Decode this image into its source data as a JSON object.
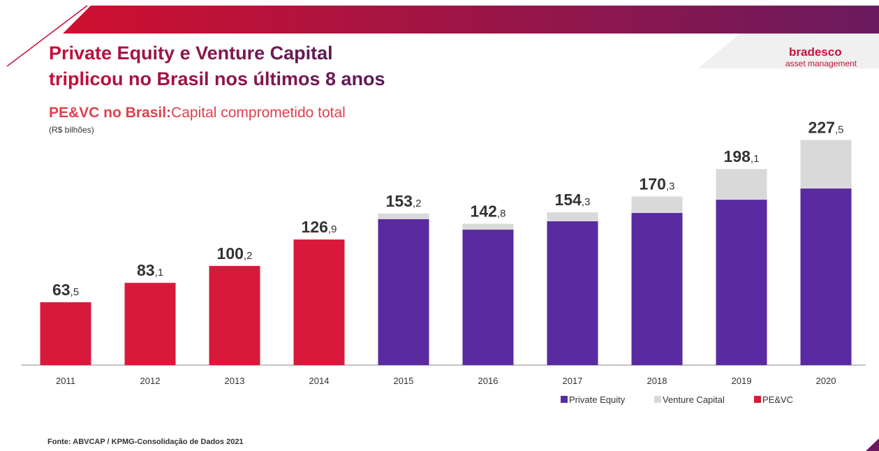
{
  "header": {
    "title_line1": "Private Equity e Venture Capital",
    "title_line2": "triplicou no Brasil nos últimos 8 anos",
    "logo_name": "bradesco",
    "logo_sub": "asset management"
  },
  "chart_data": {
    "type": "stacked_bar",
    "title_bold": "PE&VC no Brasil:",
    "title": "Capital comprometido total",
    "subtitle": "(R$ bilhões)",
    "categories": [
      "2011",
      "2012",
      "2013",
      "2014",
      "2015",
      "2016",
      "2017",
      "2018",
      "2019",
      "2020"
    ],
    "series": [
      {
        "name": "Private Equity",
        "color": "#5a2aa0",
        "values": [
          null,
          null,
          null,
          null,
          147.4,
          136.8,
          145.3,
          153.7,
          167.1,
          178.4
        ]
      },
      {
        "name": "Venture Capital",
        "color": "#d9d9d9",
        "values": [
          null,
          null,
          null,
          null,
          5.8,
          6.0,
          9.0,
          16.6,
          31.0,
          49.1
        ]
      },
      {
        "name": "PE&VC",
        "color": "#d9193b",
        "values": [
          63.5,
          83.1,
          100.2,
          126.9,
          null,
          null,
          null,
          null,
          null,
          null
        ]
      }
    ],
    "totals": [
      63.5,
      83.1,
      100.2,
      126.9,
      153.2,
      142.8,
      154.3,
      170.3,
      198.1,
      227.5
    ],
    "total_labels": [
      "63,5",
      "83,1",
      "100,2",
      "126,9",
      "153,2",
      "142,8",
      "154,3",
      "170,3",
      "198,1",
      "227,5"
    ],
    "source": "Fonte: ABVCAP / KPMG-Consolidação de Dados 2021"
  }
}
